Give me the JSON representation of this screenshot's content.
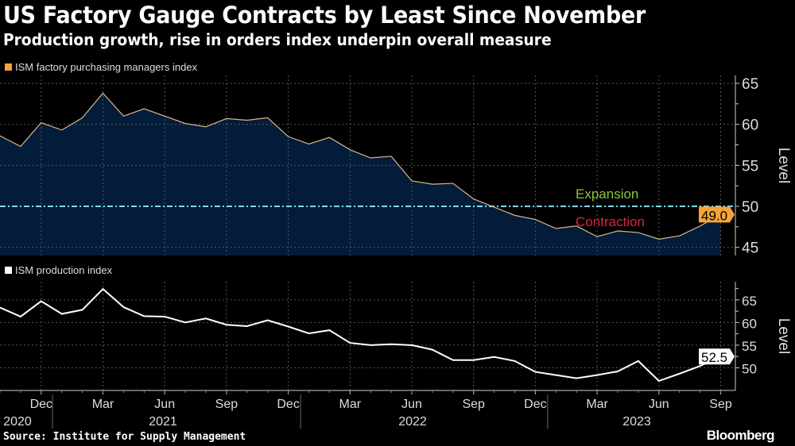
{
  "header": {
    "title": "US Factory Gauge Contracts by Least Since November",
    "subtitle": "Production growth, rise in orders index underpin overall measure"
  },
  "footer": {
    "source": "Source: Institute for Supply Management",
    "brand": "Bloomberg"
  },
  "colors": {
    "pmi_line": "#d9b88a",
    "pmi_fill": "#031c3a",
    "pmi_marker": "#f5a33a",
    "threshold": "#7fd8e8",
    "expansion": "#8cc63f",
    "contraction": "#e0213f",
    "production_line": "#ffffff"
  },
  "chart_data": [
    {
      "type": "area",
      "legend": "ISM factory purchasing managers index",
      "ylabel": "Level",
      "ylim": [
        44,
        66
      ],
      "yticks": [
        45,
        50,
        55,
        60,
        65
      ],
      "threshold": 50,
      "annotations": {
        "above": "Expansion",
        "below": "Contraction"
      },
      "last_value_label": "49.0",
      "x": [
        "2020-10",
        "2020-11",
        "2020-12",
        "2021-01",
        "2021-02",
        "2021-03",
        "2021-04",
        "2021-05",
        "2021-06",
        "2021-07",
        "2021-08",
        "2021-09",
        "2021-10",
        "2021-11",
        "2021-12",
        "2022-01",
        "2022-02",
        "2022-03",
        "2022-04",
        "2022-05",
        "2022-06",
        "2022-07",
        "2022-08",
        "2022-09",
        "2022-10",
        "2022-11",
        "2022-12",
        "2023-01",
        "2023-02",
        "2023-03",
        "2023-04",
        "2023-05",
        "2023-06",
        "2023-07",
        "2023-08",
        "2023-09"
      ],
      "values": [
        58.6,
        57.3,
        60.2,
        59.3,
        60.8,
        63.8,
        61.0,
        61.9,
        61.0,
        60.1,
        59.7,
        60.7,
        60.5,
        60.8,
        58.5,
        57.6,
        58.4,
        56.9,
        55.9,
        56.1,
        53.1,
        52.7,
        52.8,
        50.9,
        49.9,
        48.9,
        48.4,
        47.3,
        47.6,
        46.3,
        47.0,
        46.8,
        46.0,
        46.4,
        47.6,
        49.0
      ]
    },
    {
      "type": "line",
      "legend": "ISM production index",
      "ylabel": "Level",
      "ylim": [
        45,
        69
      ],
      "yticks": [
        50,
        55,
        60,
        65
      ],
      "last_value_label": "52.5",
      "x_tick_labels": [
        "Dec",
        "Mar",
        "Jun",
        "Sep",
        "Dec",
        "Mar",
        "Jun",
        "Sep",
        "Dec",
        "Mar",
        "Jun",
        "Sep"
      ],
      "x_year_labels": [
        "2020",
        "2021",
        "2022",
        "2023"
      ],
      "values": [
        63.3,
        61.3,
        64.7,
        61.9,
        62.8,
        67.4,
        63.4,
        61.4,
        61.3,
        60.0,
        60.9,
        59.5,
        59.2,
        60.5,
        59.1,
        57.6,
        58.3,
        55.5,
        55.0,
        55.2,
        55.0,
        54.0,
        51.7,
        51.7,
        52.4,
        51.5,
        49.1,
        48.4,
        47.7,
        48.4,
        49.2,
        51.5,
        47.1,
        48.7,
        50.4,
        52.5
      ]
    }
  ]
}
